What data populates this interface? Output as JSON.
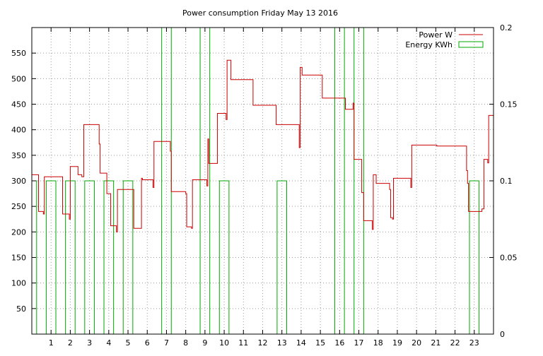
{
  "chart_data": {
    "type": "line",
    "title": "Power consumption Friday May 13 2016",
    "xlabel": "",
    "ylabel": "",
    "y2label": "",
    "xlim": [
      0,
      24
    ],
    "ylim": [
      0,
      600
    ],
    "y2lim": [
      0,
      0.2
    ],
    "xticks": [
      1,
      2,
      3,
      4,
      5,
      6,
      7,
      8,
      9,
      10,
      11,
      12,
      13,
      14,
      15,
      16,
      17,
      18,
      19,
      20,
      21,
      22,
      23
    ],
    "yticks": [
      50,
      100,
      150,
      200,
      250,
      300,
      350,
      400,
      450,
      500,
      550
    ],
    "y2ticks": [
      0,
      0.05,
      0.1,
      0.15,
      0.2
    ],
    "y2tick_labels": [
      "0",
      "0.05",
      "0.1",
      "0.15",
      "0.2"
    ],
    "grid": true,
    "legend_position": "top-right",
    "colors": {
      "power": "#cc0000",
      "energy": "#00aa00"
    },
    "series": [
      {
        "name": "Power W",
        "axis": "y1",
        "style": "steps",
        "points": [
          [
            0.0,
            312
          ],
          [
            0.35,
            312
          ],
          [
            0.35,
            240
          ],
          [
            0.6,
            240
          ],
          [
            0.6,
            235
          ],
          [
            0.65,
            235
          ],
          [
            0.65,
            308
          ],
          [
            1.6,
            308
          ],
          [
            1.6,
            235
          ],
          [
            1.95,
            235
          ],
          [
            1.95,
            225
          ],
          [
            2.0,
            225
          ],
          [
            2.0,
            328
          ],
          [
            2.4,
            328
          ],
          [
            2.4,
            312
          ],
          [
            2.6,
            312
          ],
          [
            2.6,
            308
          ],
          [
            2.7,
            308
          ],
          [
            2.7,
            410
          ],
          [
            3.5,
            410
          ],
          [
            3.5,
            372
          ],
          [
            3.55,
            372
          ],
          [
            3.55,
            315
          ],
          [
            3.9,
            315
          ],
          [
            3.9,
            275
          ],
          [
            4.1,
            275
          ],
          [
            4.1,
            212
          ],
          [
            4.4,
            212
          ],
          [
            4.4,
            200
          ],
          [
            4.45,
            200
          ],
          [
            4.45,
            283
          ],
          [
            5.3,
            283
          ],
          [
            5.3,
            207
          ],
          [
            5.7,
            207
          ],
          [
            5.7,
            305
          ],
          [
            5.75,
            305
          ],
          [
            5.75,
            302
          ],
          [
            6.3,
            302
          ],
          [
            6.3,
            287
          ],
          [
            6.35,
            287
          ],
          [
            6.35,
            377
          ],
          [
            7.2,
            377
          ],
          [
            7.2,
            358
          ],
          [
            7.25,
            358
          ],
          [
            7.25,
            279
          ],
          [
            8.0,
            279
          ],
          [
            8.0,
            275
          ],
          [
            8.05,
            275
          ],
          [
            8.05,
            210
          ],
          [
            8.3,
            210
          ],
          [
            8.3,
            207
          ],
          [
            8.35,
            207
          ],
          [
            8.35,
            302
          ],
          [
            9.1,
            302
          ],
          [
            9.1,
            290
          ],
          [
            9.15,
            290
          ],
          [
            9.15,
            382
          ],
          [
            9.2,
            382
          ],
          [
            9.2,
            334
          ],
          [
            9.65,
            334
          ],
          [
            9.65,
            432
          ],
          [
            10.1,
            432
          ],
          [
            10.1,
            420
          ],
          [
            10.15,
            420
          ],
          [
            10.15,
            536
          ],
          [
            10.35,
            536
          ],
          [
            10.35,
            498
          ],
          [
            11.5,
            498
          ],
          [
            11.5,
            448
          ],
          [
            12.7,
            448
          ],
          [
            12.7,
            410
          ],
          [
            13.9,
            410
          ],
          [
            13.9,
            365
          ],
          [
            13.95,
            365
          ],
          [
            13.95,
            522
          ],
          [
            14.05,
            522
          ],
          [
            14.05,
            507
          ],
          [
            15.1,
            507
          ],
          [
            15.1,
            462
          ],
          [
            16.3,
            462
          ],
          [
            16.3,
            440
          ],
          [
            16.7,
            440
          ],
          [
            16.7,
            452
          ],
          [
            16.75,
            452
          ],
          [
            16.75,
            342
          ],
          [
            17.15,
            342
          ],
          [
            17.15,
            277
          ],
          [
            17.25,
            277
          ],
          [
            17.25,
            222
          ],
          [
            17.7,
            222
          ],
          [
            17.7,
            205
          ],
          [
            17.75,
            205
          ],
          [
            17.75,
            312
          ],
          [
            17.9,
            312
          ],
          [
            17.9,
            295
          ],
          [
            18.6,
            295
          ],
          [
            18.6,
            283
          ],
          [
            18.65,
            283
          ],
          [
            18.65,
            228
          ],
          [
            18.75,
            228
          ],
          [
            18.75,
            225
          ],
          [
            18.8,
            225
          ],
          [
            18.8,
            305
          ],
          [
            19.7,
            305
          ],
          [
            19.7,
            287
          ],
          [
            19.75,
            287
          ],
          [
            19.75,
            370
          ],
          [
            21.05,
            370
          ],
          [
            21.05,
            368
          ],
          [
            22.6,
            368
          ],
          [
            22.6,
            320
          ],
          [
            22.65,
            320
          ],
          [
            22.65,
            295
          ],
          [
            22.7,
            295
          ],
          [
            22.7,
            240
          ],
          [
            23.4,
            240
          ],
          [
            23.4,
            245
          ],
          [
            23.5,
            245
          ],
          [
            23.5,
            342
          ],
          [
            23.7,
            342
          ],
          [
            23.7,
            335
          ],
          [
            23.75,
            335
          ],
          [
            23.75,
            428
          ],
          [
            24.0,
            428
          ]
        ]
      },
      {
        "name": "Energy KWh",
        "axis": "y2",
        "style": "boxes",
        "bars": [
          {
            "x0": 0.0,
            "x1": 0.25,
            "value": 0.1
          },
          {
            "x0": 0.75,
            "x1": 1.25,
            "value": 0.1
          },
          {
            "x0": 1.75,
            "x1": 2.25,
            "value": 0.1
          },
          {
            "x0": 2.75,
            "x1": 3.25,
            "value": 0.1
          },
          {
            "x0": 3.75,
            "x1": 4.25,
            "value": 0.1
          },
          {
            "x0": 4.75,
            "x1": 5.25,
            "value": 0.1
          },
          {
            "x0": 6.75,
            "x1": 7.25,
            "value": 0.2
          },
          {
            "x0": 8.75,
            "x1": 9.25,
            "value": 0.2
          },
          {
            "x0": 9.75,
            "x1": 10.25,
            "value": 0.1
          },
          {
            "x0": 12.75,
            "x1": 13.25,
            "value": 0.1
          },
          {
            "x0": 15.75,
            "x1": 16.25,
            "value": 0.2
          },
          {
            "x0": 16.75,
            "x1": 17.25,
            "value": 0.2
          },
          {
            "x0": 22.75,
            "x1": 23.25,
            "value": 0.1
          }
        ]
      }
    ]
  }
}
